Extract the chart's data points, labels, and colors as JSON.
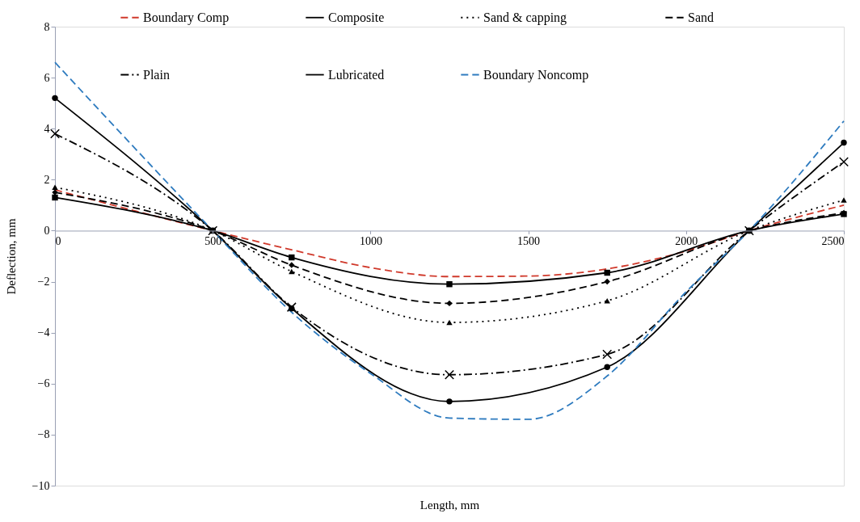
{
  "chart_data": {
    "type": "line",
    "xlabel": "Length, mm",
    "ylabel": "Deflection, mm",
    "xlim": [
      0,
      2500
    ],
    "xticks": [
      0,
      500,
      1000,
      1500,
      2000,
      2500
    ],
    "ylim": [
      -10,
      8
    ],
    "yticks": [
      -10,
      -8,
      -6,
      -4,
      -2,
      0,
      2,
      4,
      6,
      8
    ],
    "grid": false,
    "legend": "top",
    "series": [
      {
        "name": "Boundary Comp",
        "color": "#d0392b",
        "line_style": "dashed",
        "marker": "none",
        "x": [
          0,
          500,
          750,
          1000,
          1250,
          1500,
          1750,
          2000,
          2200,
          2500
        ],
        "values": [
          1.6,
          0,
          -0.75,
          -1.45,
          -1.8,
          -1.78,
          -1.5,
          -0.8,
          0,
          1.0
        ]
      },
      {
        "name": "Composite",
        "color": "#000000",
        "line_style": "solid",
        "marker": "square",
        "x": [
          0,
          500,
          750,
          1250,
          1750,
          2200,
          2500
        ],
        "values": [
          1.3,
          0,
          -1.05,
          -2.1,
          -1.65,
          0,
          0.65
        ]
      },
      {
        "name": "Sand & capping",
        "color": "#000000",
        "line_style": "dotted",
        "marker": "triangle",
        "x": [
          0,
          500,
          750,
          1250,
          1750,
          2200,
          2500
        ],
        "values": [
          1.7,
          0,
          -1.6,
          -3.6,
          -2.75,
          0,
          1.2
        ]
      },
      {
        "name": "Sand",
        "color": "#000000",
        "line_style": "dashed",
        "marker": "diamond",
        "x": [
          0,
          500,
          750,
          1250,
          1750,
          2200,
          2500
        ],
        "values": [
          1.5,
          0,
          -1.35,
          -2.85,
          -2.0,
          0,
          0.7
        ]
      },
      {
        "name": "Plain",
        "color": "#000000",
        "line_style": "dashdot",
        "marker": "cross",
        "x": [
          0,
          500,
          750,
          1250,
          1750,
          2200,
          2500
        ],
        "values": [
          3.8,
          0,
          -3.0,
          -5.65,
          -4.85,
          0,
          2.7
        ]
      },
      {
        "name": "Lubricated",
        "color": "#000000",
        "line_style": "solid",
        "marker": "circle",
        "x": [
          0,
          500,
          750,
          1250,
          1750,
          2200,
          2500
        ],
        "values": [
          5.2,
          0,
          -3.05,
          -6.7,
          -5.35,
          0,
          3.45
        ]
      },
      {
        "name": "Boundary Noncomp",
        "color": "#2e7bbf",
        "line_style": "dashed",
        "marker": "none",
        "x": [
          0,
          500,
          750,
          1000,
          1250,
          1500,
          1750,
          2000,
          2200,
          2500
        ],
        "values": [
          6.6,
          0,
          -3.2,
          -5.6,
          -7.35,
          -7.4,
          -5.7,
          -2.4,
          0,
          4.3
        ]
      }
    ]
  }
}
